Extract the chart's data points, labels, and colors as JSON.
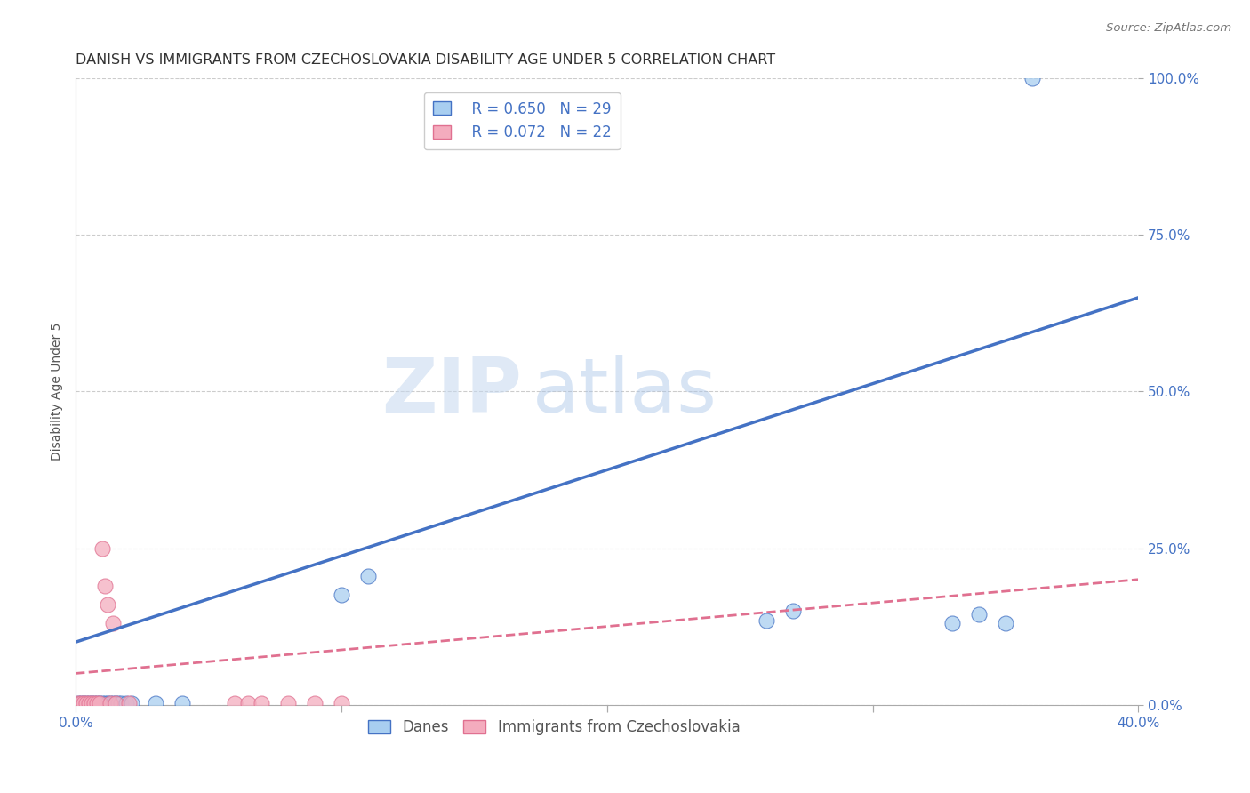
{
  "title": "DANISH VS IMMIGRANTS FROM CZECHOSLOVAKIA DISABILITY AGE UNDER 5 CORRELATION CHART",
  "source": "Source: ZipAtlas.com",
  "ylabel": "Disability Age Under 5",
  "xlim": [
    0.0,
    0.4
  ],
  "ylim": [
    0.0,
    1.0
  ],
  "xticks": [
    0.0,
    0.1,
    0.2,
    0.3,
    0.4
  ],
  "xtick_labels": [
    "0.0%",
    "",
    "",
    "",
    "40.0%"
  ],
  "yticks": [
    0.0,
    0.25,
    0.5,
    0.75,
    1.0
  ],
  "ytick_labels": [
    "0.0%",
    "25.0%",
    "50.0%",
    "75.0%",
    "100.0%"
  ],
  "danes_R": 0.65,
  "danes_N": 29,
  "immig_R": 0.072,
  "immig_N": 22,
  "danes_color": "#A8CEF0",
  "danes_line_color": "#4472C4",
  "immig_color": "#F4ACBE",
  "immig_line_color": "#E07090",
  "background_color": "#FFFFFF",
  "watermark_zip": "ZIP",
  "watermark_atlas": "atlas",
  "danes_x": [
    0.001,
    0.002,
    0.003,
    0.004,
    0.005,
    0.006,
    0.007,
    0.008,
    0.009,
    0.01,
    0.011,
    0.012,
    0.013,
    0.014,
    0.015,
    0.016,
    0.017,
    0.019,
    0.021,
    0.03,
    0.04,
    0.1,
    0.11,
    0.26,
    0.27,
    0.33,
    0.34,
    0.35,
    0.36
  ],
  "danes_y": [
    0.002,
    0.002,
    0.002,
    0.002,
    0.002,
    0.002,
    0.002,
    0.002,
    0.002,
    0.002,
    0.002,
    0.002,
    0.002,
    0.002,
    0.002,
    0.002,
    0.002,
    0.002,
    0.002,
    0.002,
    0.002,
    0.175,
    0.205,
    0.135,
    0.15,
    0.13,
    0.145,
    0.13,
    1.0
  ],
  "immig_x": [
    0.001,
    0.002,
    0.003,
    0.004,
    0.005,
    0.006,
    0.007,
    0.008,
    0.009,
    0.01,
    0.011,
    0.012,
    0.013,
    0.014,
    0.015,
    0.02,
    0.06,
    0.065,
    0.07,
    0.08,
    0.09,
    0.1
  ],
  "immig_y": [
    0.002,
    0.002,
    0.002,
    0.002,
    0.002,
    0.002,
    0.002,
    0.002,
    0.002,
    0.25,
    0.19,
    0.16,
    0.002,
    0.13,
    0.002,
    0.002,
    0.002,
    0.002,
    0.002,
    0.002,
    0.002,
    0.002
  ],
  "title_fontsize": 11.5,
  "axis_label_fontsize": 10,
  "tick_fontsize": 11,
  "legend_fontsize": 12
}
